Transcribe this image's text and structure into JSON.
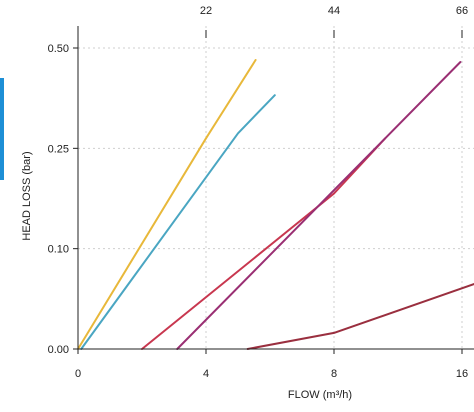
{
  "chart_data": {
    "type": "line",
    "xlabel": "FLOW (m³/h)",
    "ylabel": "HEAD LOSS (bar)",
    "x_ticks": [
      "0",
      "4",
      "8",
      "16"
    ],
    "x_tick_values": [
      0,
      4,
      8,
      12
    ],
    "y_ticks": [
      "0.00",
      "0.10",
      "0.25",
      "0.50"
    ],
    "y_tick_values": [
      0,
      1,
      2,
      3
    ],
    "top_ticks": [
      "22",
      "44",
      "66"
    ],
    "top_tick_values": [
      4,
      8,
      12
    ],
    "xlim": [
      0,
      12
    ],
    "ylim": [
      0,
      3
    ],
    "grid": true,
    "series": [
      {
        "color": "#e8b83a",
        "x": [
          0,
          4,
          5.55
        ],
        "y": [
          0,
          2.1,
          2.88
        ]
      },
      {
        "color": "#4aa6c2",
        "x": [
          0.1,
          5,
          6.15
        ],
        "y": [
          0,
          2.15,
          2.53
        ]
      },
      {
        "color": "#c8374f",
        "x": [
          2.0,
          8,
          9.6
        ],
        "y": [
          0,
          1.55,
          2.1
        ]
      },
      {
        "color": "#9a2f73",
        "x": [
          3.1,
          9.6,
          11.95
        ],
        "y": [
          0,
          2.1,
          2.86
        ]
      },
      {
        "color": "#9a2f3f",
        "x": [
          5.3,
          8,
          12.4
        ],
        "y": [
          0,
          0.16,
          0.65
        ]
      }
    ]
  },
  "colors": {
    "grid": "#cfcfcf",
    "axis": "#222222",
    "side_strip": "#1d8fd6"
  }
}
